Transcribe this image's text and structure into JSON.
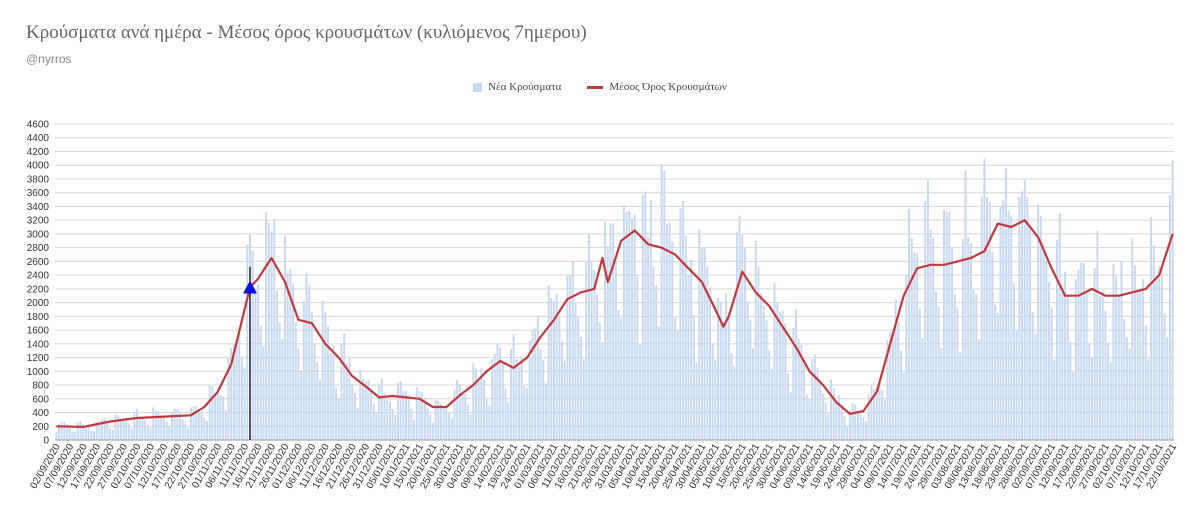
{
  "title": "Κρούσματα ανά ημέρα - Μέσος όρος κρουσμάτων (κυλιόμενος 7ημερου)",
  "subtitle": "@nyrros",
  "legend": {
    "bars_label": "Νέα Κρούσματα",
    "line_label": "Μέσος Όρος Κρουσμάτων"
  },
  "colors": {
    "bars": "#c7d8f3",
    "line": "#c0393b",
    "grid": "#d6d6d6",
    "marker": "#1010e0",
    "marker_line": "#000000"
  },
  "chart_data": {
    "type": "bar",
    "title": "Κρούσματα ανά ημέρα - Μέσος όρος κρουσμάτων (κυλιόμενος 7ημερου)",
    "ylim": [
      0,
      4600
    ],
    "yticks": [
      0,
      200,
      400,
      600,
      800,
      1000,
      1200,
      1400,
      1600,
      1800,
      2000,
      2200,
      2400,
      2600,
      2800,
      3000,
      3200,
      3400,
      3600,
      3800,
      4000,
      4200,
      4400,
      4600
    ],
    "x_start": "2020-09-02",
    "x_end": "2021-10-22",
    "x_ticks": [
      "02/09/2020",
      "07/09/2020",
      "12/09/2020",
      "17/09/2020",
      "22/09/2020",
      "27/09/2020",
      "02/10/2020",
      "07/10/2020",
      "12/10/2020",
      "17/10/2020",
      "22/10/2020",
      "27/10/2020",
      "01/11/2020",
      "06/11/2020",
      "11/11/2020",
      "16/11/2020",
      "21/11/2020",
      "26/11/2020",
      "01/12/2020",
      "06/12/2020",
      "11/12/2020",
      "16/12/2020",
      "21/12/2020",
      "26/12/2020",
      "31/12/2020",
      "05/01/2021",
      "10/01/2021",
      "15/01/2021",
      "20/01/2021",
      "25/01/2021",
      "30/01/2021",
      "04/02/2021",
      "09/02/2021",
      "14/02/2021",
      "19/02/2021",
      "24/02/2021",
      "01/03/2021",
      "06/03/2021",
      "11/03/2021",
      "16/03/2021",
      "21/03/2021",
      "26/03/2021",
      "31/03/2021",
      "05/04/2021",
      "10/04/2021",
      "15/04/2021",
      "20/04/2021",
      "25/04/2021",
      "30/04/2021",
      "05/05/2021",
      "10/05/2021",
      "15/05/2021",
      "20/05/2021",
      "25/05/2021",
      "30/05/2021",
      "04/06/2021",
      "09/06/2021",
      "14/06/2021",
      "19/06/2021",
      "24/06/2021",
      "29/06/2021",
      "04/07/2021",
      "09/07/2021",
      "14/07/2021",
      "19/07/2021",
      "24/07/2021",
      "29/07/2021",
      "03/08/2021",
      "08/08/2021",
      "13/08/2021",
      "18/08/2021",
      "23/08/2021",
      "28/08/2021",
      "02/09/2021",
      "07/09/2021",
      "12/09/2021",
      "17/09/2021",
      "22/09/2021",
      "27/09/2021",
      "02/10/2021",
      "07/10/2021",
      "12/10/2021",
      "17/10/2021",
      "22/10/2021"
    ],
    "series": [
      {
        "name": "Μέσος Όρος Κρουσμάτων",
        "kind": "line",
        "points": [
          [
            "02/09/2020",
            200
          ],
          [
            "12/09/2020",
            190
          ],
          [
            "22/09/2020",
            270
          ],
          [
            "02/10/2020",
            320
          ],
          [
            "12/10/2020",
            340
          ],
          [
            "22/10/2020",
            360
          ],
          [
            "27/10/2020",
            480
          ],
          [
            "01/11/2020",
            700
          ],
          [
            "06/11/2020",
            1100
          ],
          [
            "11/11/2020",
            1900
          ],
          [
            "13/11/2020",
            2220
          ],
          [
            "16/11/2020",
            2350
          ],
          [
            "21/11/2020",
            2650
          ],
          [
            "26/11/2020",
            2300
          ],
          [
            "01/12/2020",
            1750
          ],
          [
            "06/12/2020",
            1700
          ],
          [
            "11/12/2020",
            1400
          ],
          [
            "16/12/2020",
            1200
          ],
          [
            "21/12/2020",
            930
          ],
          [
            "26/12/2020",
            780
          ],
          [
            "31/12/2020",
            620
          ],
          [
            "05/01/2021",
            640
          ],
          [
            "10/01/2021",
            620
          ],
          [
            "15/01/2021",
            600
          ],
          [
            "20/01/2021",
            480
          ],
          [
            "25/01/2021",
            480
          ],
          [
            "30/01/2021",
            650
          ],
          [
            "04/02/2021",
            800
          ],
          [
            "09/02/2021",
            1000
          ],
          [
            "14/02/2021",
            1150
          ],
          [
            "19/02/2021",
            1050
          ],
          [
            "24/02/2021",
            1200
          ],
          [
            "01/03/2021",
            1500
          ],
          [
            "06/03/2021",
            1750
          ],
          [
            "11/03/2021",
            2050
          ],
          [
            "16/03/2021",
            2150
          ],
          [
            "21/03/2021",
            2200
          ],
          [
            "24/03/2021",
            2650
          ],
          [
            "26/03/2021",
            2300
          ],
          [
            "31/03/2021",
            2900
          ],
          [
            "05/04/2021",
            3050
          ],
          [
            "10/04/2021",
            2850
          ],
          [
            "15/04/2021",
            2800
          ],
          [
            "20/04/2021",
            2700
          ],
          [
            "25/04/2021",
            2500
          ],
          [
            "30/04/2021",
            2300
          ],
          [
            "05/05/2021",
            1900
          ],
          [
            "08/05/2021",
            1650
          ],
          [
            "10/05/2021",
            1800
          ],
          [
            "15/05/2021",
            2450
          ],
          [
            "20/05/2021",
            2150
          ],
          [
            "25/05/2021",
            1950
          ],
          [
            "30/05/2021",
            1650
          ],
          [
            "04/06/2021",
            1350
          ],
          [
            "09/06/2021",
            1000
          ],
          [
            "14/06/2021",
            800
          ],
          [
            "19/06/2021",
            550
          ],
          [
            "24/06/2021",
            380
          ],
          [
            "29/06/2021",
            420
          ],
          [
            "04/07/2021",
            700
          ],
          [
            "09/07/2021",
            1400
          ],
          [
            "14/07/2021",
            2100
          ],
          [
            "19/07/2021",
            2500
          ],
          [
            "24/07/2021",
            2550
          ],
          [
            "29/07/2021",
            2550
          ],
          [
            "03/08/2021",
            2600
          ],
          [
            "08/08/2021",
            2650
          ],
          [
            "13/08/2021",
            2750
          ],
          [
            "18/08/2021",
            3150
          ],
          [
            "23/08/2021",
            3100
          ],
          [
            "28/08/2021",
            3200
          ],
          [
            "02/09/2021",
            2950
          ],
          [
            "07/09/2021",
            2500
          ],
          [
            "12/09/2021",
            2100
          ],
          [
            "17/09/2021",
            2100
          ],
          [
            "22/09/2021",
            2200
          ],
          [
            "27/09/2021",
            2100
          ],
          [
            "02/10/2021",
            2100
          ],
          [
            "07/10/2021",
            2150
          ],
          [
            "12/10/2021",
            2200
          ],
          [
            "17/10/2021",
            2400
          ],
          [
            "22/10/2021",
            3000
          ]
        ]
      }
    ],
    "marker": {
      "x": "13/11/2020",
      "y": 2220,
      "line_top": 2520
    }
  }
}
